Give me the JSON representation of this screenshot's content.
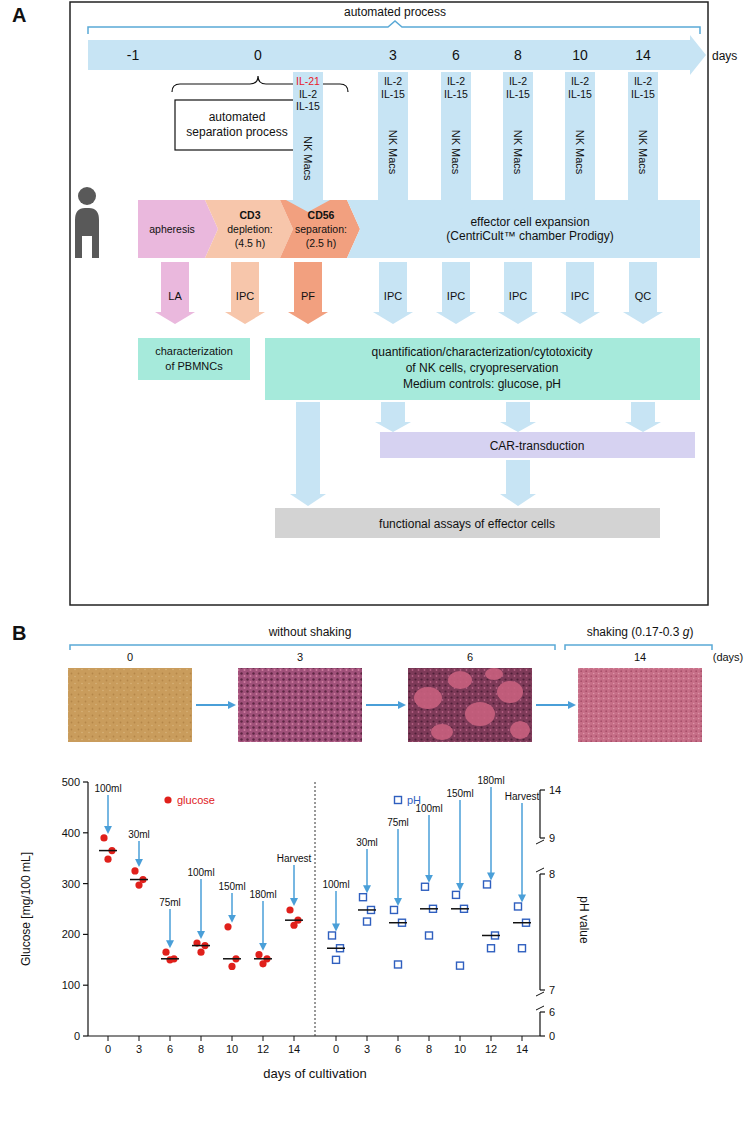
{
  "diagram": {
    "panel": "A",
    "header": "automated process",
    "days": [
      "-1",
      "0",
      "3",
      "6",
      "8",
      "10",
      "14"
    ],
    "days_unit": "days",
    "separation_box": [
      "automated",
      "separation process"
    ],
    "feeds": [
      {
        "cytokines": [
          {
            "text": "IL-21",
            "color": "#e8202a"
          },
          {
            "text": "IL-2"
          },
          {
            "text": "IL-15"
          }
        ],
        "medium": "NK Macs"
      },
      {
        "cytokines": [
          {
            "text": "IL-2"
          },
          {
            "text": "IL-15"
          }
        ],
        "medium": "NK Macs"
      },
      {
        "cytokines": [
          {
            "text": "IL-2"
          },
          {
            "text": "IL-15"
          }
        ],
        "medium": "NK Macs"
      },
      {
        "cytokines": [
          {
            "text": "IL-2"
          },
          {
            "text": "IL-15"
          }
        ],
        "medium": "NK Macs"
      },
      {
        "cytokines": [
          {
            "text": "IL-2"
          },
          {
            "text": "IL-15"
          }
        ],
        "medium": "NK Macs"
      },
      {
        "cytokines": [
          {
            "text": "IL-2"
          },
          {
            "text": "IL-15"
          }
        ],
        "medium": "NK Macs"
      }
    ],
    "steps": [
      {
        "lines": [
          "apheresis"
        ],
        "sample": "LA",
        "color": "#eab8dd"
      },
      {
        "bold": "CD3",
        "lines": [
          "depletion:",
          "(4.5 h)"
        ],
        "sample": "IPC",
        "color": "#f7c6ab"
      },
      {
        "bold": "CD56",
        "lines": [
          "separation:",
          "(2.5 h)"
        ],
        "sample": "PF",
        "color": "#f2a07f"
      },
      {
        "lines": [
          "effector cell expansion",
          "(CentriCult™ chamber Prodigy)"
        ],
        "color": "#c7e4f4"
      }
    ],
    "expansion_samples": [
      "IPC",
      "IPC",
      "IPC",
      "IPC",
      "QC"
    ],
    "boxes": {
      "pbmnc": [
        "characterization",
        "of PBMNCs"
      ],
      "nk": [
        "quantification/characterization/cytotoxicity",
        "of NK cells, cryopreservation",
        "Medium controls: glucose, pH"
      ],
      "car": "CAR-transduction",
      "functional": "functional assays of effector cells"
    }
  },
  "photos": {
    "panel": "B",
    "conditions": [
      {
        "text": "without shaking"
      },
      {
        "text": "shaking (0.17-0.3 ",
        "italic": "g",
        "after": ")"
      }
    ],
    "days": [
      "0",
      "3",
      "6",
      "14"
    ],
    "unit": "(days)"
  },
  "chart_data": {
    "type": "scatter",
    "categories": [
      "0",
      "3",
      "6",
      "8",
      "10",
      "12",
      "14"
    ],
    "x_label": "days of cultivation",
    "y_label": "Glucose [mg/100 mL]",
    "y2_label": "pH value",
    "ylim": [
      0,
      500
    ],
    "yticks": [
      0,
      100,
      200,
      300,
      400,
      500
    ],
    "y2lim": [
      0,
      14
    ],
    "y2ticks": [
      0,
      6,
      7,
      8,
      9,
      14
    ],
    "y2_breaks": [
      [
        6,
        7
      ],
      [
        8,
        9
      ]
    ],
    "legend": "top",
    "series": [
      {
        "name": "glucose",
        "color": "#e0201b",
        "marker": "circle",
        "values": [
          [
            390,
            365,
            348
          ],
          [
            325,
            308,
            297
          ],
          [
            165,
            152,
            150
          ],
          [
            183,
            178,
            165
          ],
          [
            215,
            152,
            137
          ],
          [
            160,
            152,
            142
          ],
          [
            248,
            228,
            218
          ]
        ],
        "medians": [
          365,
          308,
          152,
          178,
          152,
          152,
          228
        ],
        "annotations": [
          "100ml",
          "30ml",
          "75ml",
          "100ml",
          "150ml",
          "180ml",
          "Harvest"
        ]
      },
      {
        "name": "pH",
        "color": "#2f5fbf",
        "marker": "square",
        "axis": "y2",
        "values": [
          [
            7.47,
            7.36,
            7.26
          ],
          [
            7.8,
            7.69,
            7.59
          ],
          [
            7.69,
            7.58,
            7.22
          ],
          [
            7.89,
            7.7,
            7.47
          ],
          [
            7.82,
            7.7,
            7.21
          ],
          [
            7.91,
            7.47,
            7.36
          ],
          [
            7.72,
            7.58,
            7.36
          ]
        ],
        "medians": [
          7.36,
          7.69,
          7.58,
          7.7,
          7.7,
          7.47,
          7.58
        ],
        "annotations": [
          "100ml",
          "30ml",
          "75ml",
          "100ml",
          "150ml",
          "180ml",
          "Harvest"
        ]
      }
    ]
  }
}
